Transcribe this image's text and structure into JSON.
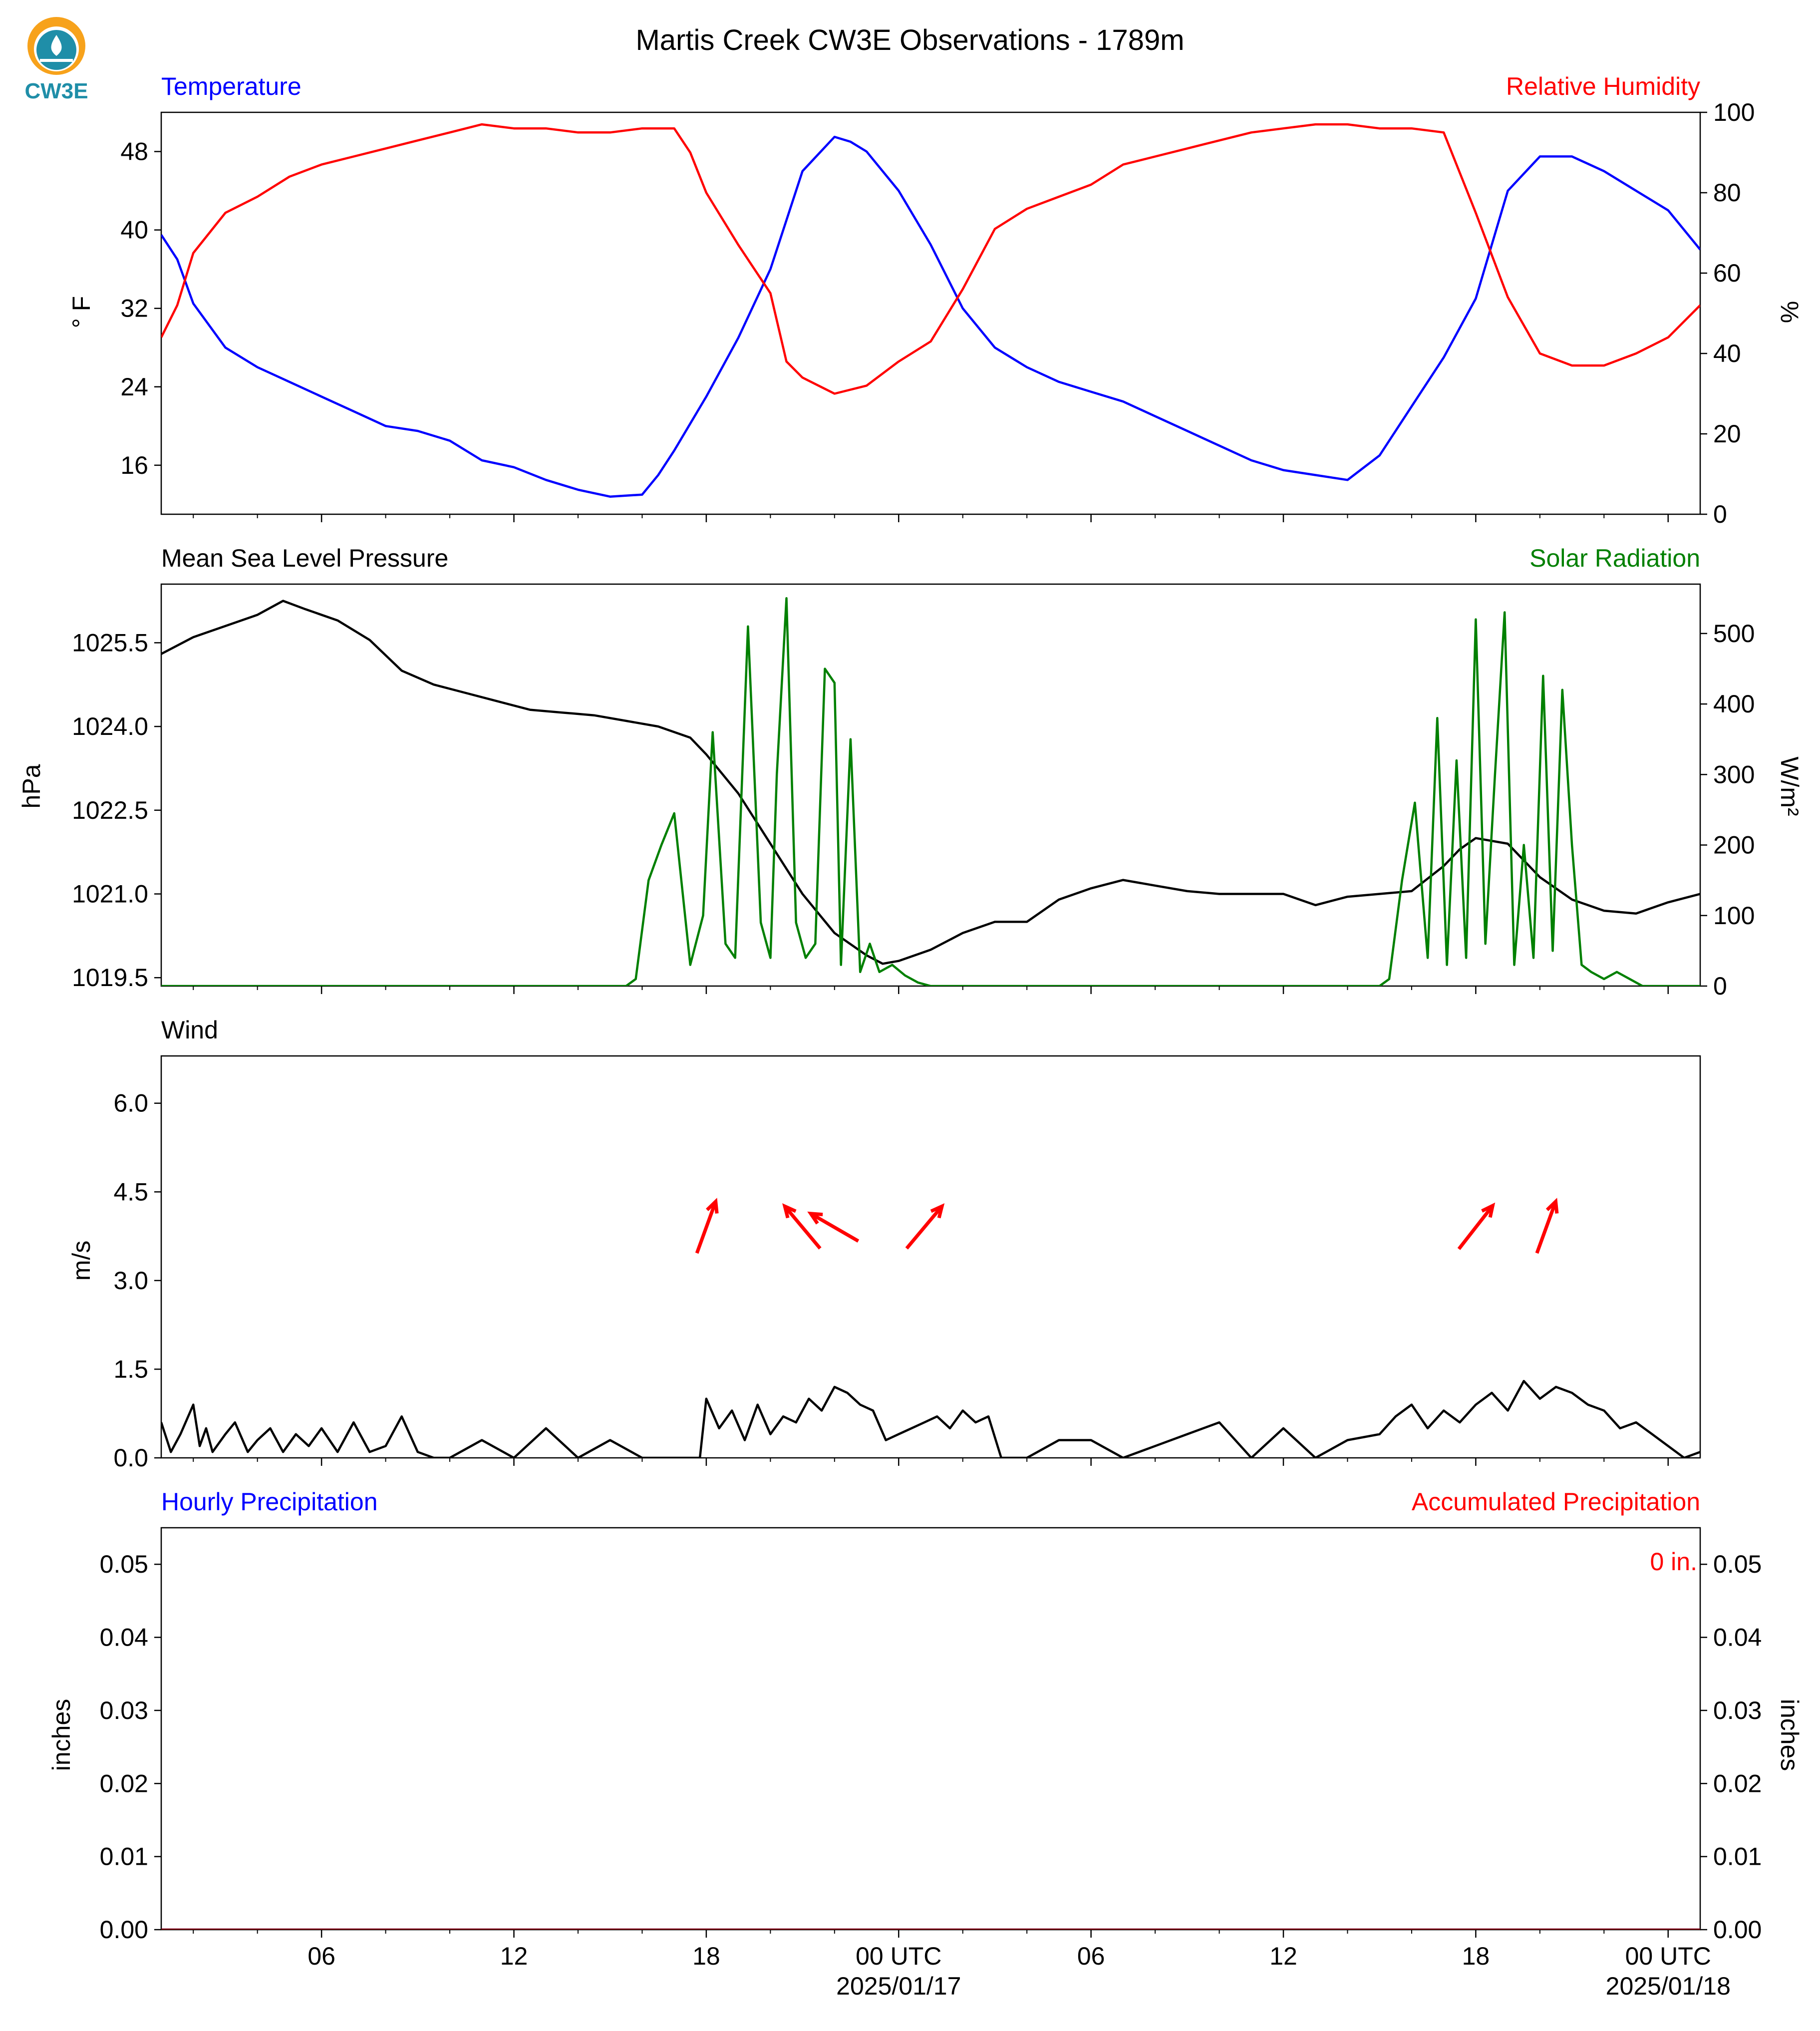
{
  "logo": {
    "text": "CW3E"
  },
  "title": "Martis Creek CW3E Observations - 1789m",
  "xaxis": {
    "tick_labels": [
      "06",
      "12",
      "18",
      "00 UTC",
      "06",
      "12",
      "18",
      "00 UTC"
    ],
    "tick_hours": [
      6,
      12,
      18,
      24,
      30,
      36,
      42,
      48
    ],
    "date_labels": [
      "2025/01/17",
      "2025/01/18"
    ],
    "date_hours": [
      24,
      48
    ],
    "range_hours": [
      1,
      49
    ]
  },
  "colors": {
    "temperature": "#0000ff",
    "humidity": "#ff0000",
    "pressure": "#000000",
    "solar": "#008000",
    "wind": "#000000",
    "arrows": "#ff0000",
    "accum": "#ff0000"
  },
  "panels": {
    "temp_rh": {
      "left_title": "Temperature",
      "right_title": "Relative Humidity",
      "left_unit": "° F",
      "right_unit": "%"
    },
    "pressure_solar": {
      "left_title": "Mean Sea Level Pressure",
      "right_title": "Solar Radiation",
      "left_unit": "hPa",
      "right_unit": "W/m²"
    },
    "wind": {
      "left_title": "Wind",
      "left_unit": "m/s"
    },
    "precip": {
      "left_title": "Hourly Precipitation",
      "right_title": "Accumulated Precipitation",
      "left_unit": "inches",
      "right_unit": "inches",
      "total_label": "0 in."
    }
  },
  "chart_data": [
    {
      "type": "line",
      "title": "Temperature / Relative Humidity",
      "x_unit": "hours from 2025/01/16 00 UTC",
      "y_left": {
        "label": "° F",
        "ylim": [
          11,
          52
        ],
        "ticks": [
          16,
          24,
          32,
          40,
          48
        ],
        "tick_labels": [
          "16",
          "24",
          "32",
          "40",
          "48"
        ]
      },
      "y_right": {
        "label": "%",
        "ylim": [
          0,
          100
        ],
        "ticks": [
          0,
          20,
          40,
          60,
          80,
          100
        ],
        "tick_labels": [
          "0",
          "20",
          "40",
          "60",
          "80",
          "100"
        ]
      },
      "series": [
        {
          "name": "Temperature",
          "axis": "left",
          "color": "#0000ff",
          "x": [
            1,
            1.5,
            2,
            3,
            4,
            5,
            6,
            7,
            8,
            9,
            10,
            11,
            12,
            13,
            14,
            15,
            16,
            16.5,
            17,
            18,
            19,
            20,
            21,
            22,
            22.5,
            23,
            24,
            25,
            26,
            27,
            28,
            29,
            30,
            31,
            32,
            33,
            34,
            35,
            36,
            37,
            38,
            39,
            40,
            40.5,
            41,
            42,
            43,
            44,
            45,
            46,
            47,
            48,
            49
          ],
          "y": [
            39.5,
            37,
            32.5,
            28,
            26,
            24.5,
            23,
            21.5,
            20,
            19.5,
            18.5,
            16.5,
            15.8,
            14.5,
            13.5,
            12.8,
            13,
            15,
            17.5,
            23,
            29,
            36,
            46,
            49.5,
            49,
            48,
            44,
            38.5,
            32,
            28,
            26,
            24.5,
            23.5,
            22.5,
            21,
            19.5,
            18,
            16.5,
            15.5,
            15,
            14.5,
            17,
            22,
            24.5,
            27,
            33,
            44,
            47.5,
            47.5,
            46,
            44,
            42,
            38
          ]
        },
        {
          "name": "Relative Humidity",
          "axis": "right",
          "color": "#ff0000",
          "x": [
            1,
            1.5,
            2,
            3,
            4,
            5,
            6,
            7,
            8,
            9,
            10,
            11,
            12,
            13,
            14,
            15,
            16,
            17,
            17.5,
            18,
            19,
            20,
            20.5,
            21,
            22,
            23,
            24,
            25,
            26,
            27,
            28,
            29,
            30,
            31,
            32,
            33,
            34,
            35,
            36,
            37,
            38,
            39,
            40,
            41,
            41.5,
            42,
            43,
            44,
            45,
            46,
            47,
            48,
            49
          ],
          "y": [
            44,
            52,
            65,
            75,
            79,
            84,
            87,
            89,
            91,
            93,
            95,
            97,
            96,
            96,
            95,
            95,
            96,
            96,
            90,
            80,
            67,
            55,
            38,
            34,
            30,
            32,
            38,
            43,
            56,
            71,
            76,
            79,
            82,
            87,
            89,
            91,
            93,
            95,
            96,
            97,
            97,
            96,
            96,
            95,
            85,
            75,
            54,
            40,
            37,
            37,
            40,
            44,
            52
          ]
        }
      ]
    },
    {
      "type": "line",
      "title": "Mean Sea Level Pressure / Solar Radiation",
      "x_unit": "hours from 2025/01/16 00 UTC",
      "y_left": {
        "label": "hPa",
        "ylim": [
          1019.35,
          1026.55
        ],
        "ticks": [
          1019.5,
          1021.0,
          1022.5,
          1024.0,
          1025.5
        ],
        "tick_labels": [
          "1019.5",
          "1021.0",
          "1022.5",
          "1024.0",
          "1025.5"
        ]
      },
      "y_right": {
        "label": "W/m²",
        "ylim": [
          0,
          570
        ],
        "ticks": [
          0,
          100,
          200,
          300,
          400,
          500
        ],
        "tick_labels": [
          "0",
          "100",
          "200",
          "300",
          "400",
          "500"
        ]
      },
      "series": [
        {
          "name": "Mean Sea Level Pressure",
          "axis": "left",
          "color": "#000000",
          "x": [
            1,
            2,
            3,
            4,
            4.8,
            5.5,
            6.5,
            7.5,
            8.5,
            9.5,
            10.5,
            11.5,
            12.5,
            13.5,
            14.5,
            15.5,
            16.5,
            17.5,
            18,
            19,
            20,
            21,
            22,
            23,
            23.5,
            24,
            25,
            26,
            27,
            28,
            29,
            30,
            31,
            32,
            33,
            34,
            35,
            36,
            37,
            38,
            39,
            40,
            41,
            41.5,
            42,
            43,
            44,
            45,
            46,
            47,
            48,
            49
          ],
          "y": [
            1025.3,
            1025.6,
            1025.8,
            1026.0,
            1026.25,
            1026.1,
            1025.9,
            1025.55,
            1025.0,
            1024.75,
            1024.6,
            1024.45,
            1024.3,
            1024.25,
            1024.2,
            1024.1,
            1024.0,
            1023.8,
            1023.5,
            1022.8,
            1021.9,
            1021.0,
            1020.3,
            1019.9,
            1019.75,
            1019.8,
            1020.0,
            1020.3,
            1020.5,
            1020.5,
            1020.9,
            1021.1,
            1021.25,
            1021.15,
            1021.05,
            1021.0,
            1021.0,
            1021.0,
            1020.8,
            1020.95,
            1021.0,
            1021.05,
            1021.5,
            1021.8,
            1022.0,
            1021.9,
            1021.3,
            1020.9,
            1020.7,
            1020.65,
            1020.85,
            1021.0
          ]
        },
        {
          "name": "Solar Radiation",
          "axis": "right",
          "color": "#008000",
          "x": [
            1,
            15.5,
            15.8,
            16.2,
            16.6,
            17.0,
            17.5,
            17.9,
            18.2,
            18.6,
            18.9,
            19.3,
            19.7,
            20.0,
            20.2,
            20.5,
            20.8,
            21.1,
            21.4,
            21.7,
            22.0,
            22.2,
            22.5,
            22.8,
            23.1,
            23.4,
            23.8,
            24.2,
            24.6,
            25.0,
            25.4,
            25.8,
            39.0,
            39.3,
            39.7,
            40.1,
            40.5,
            40.8,
            41.1,
            41.4,
            41.7,
            42.0,
            42.3,
            42.6,
            42.9,
            43.2,
            43.5,
            43.8,
            44.1,
            44.4,
            44.7,
            45.0,
            45.3,
            45.6,
            46.0,
            46.4,
            46.8,
            47.2,
            47.6,
            48.0,
            48.4,
            48.8,
            49
          ],
          "y": [
            0,
            0,
            10,
            150,
            200,
            245,
            30,
            100,
            360,
            60,
            40,
            510,
            90,
            40,
            300,
            550,
            90,
            40,
            60,
            450,
            430,
            30,
            350,
            20,
            60,
            20,
            30,
            15,
            5,
            0,
            0,
            0,
            0,
            10,
            150,
            260,
            40,
            380,
            30,
            320,
            40,
            520,
            60,
            300,
            530,
            30,
            200,
            40,
            440,
            50,
            420,
            200,
            30,
            20,
            10,
            20,
            10,
            0,
            0,
            0,
            0,
            0,
            0
          ]
        }
      ]
    },
    {
      "type": "line",
      "title": "Wind",
      "x_unit": "hours from 2025/01/16 00 UTC",
      "y_left": {
        "label": "m/s",
        "ylim": [
          0,
          6.8
        ],
        "ticks": [
          0.0,
          1.5,
          3.0,
          4.5,
          6.0
        ],
        "tick_labels": [
          "0.0",
          "1.5",
          "3.0",
          "4.5",
          "6.0"
        ]
      },
      "series": [
        {
          "name": "Wind Speed",
          "axis": "left",
          "color": "#000000",
          "x": [
            1,
            1.3,
            1.6,
            2.0,
            2.2,
            2.4,
            2.6,
            3.0,
            3.3,
            3.7,
            4.0,
            4.4,
            4.8,
            5.2,
            5.6,
            6.0,
            6.5,
            7.0,
            7.5,
            8.0,
            8.5,
            9.0,
            9.5,
            10,
            11,
            12,
            13,
            14,
            15,
            16,
            17,
            17.5,
            17.8,
            18.0,
            18.4,
            18.8,
            19.2,
            19.6,
            20.0,
            20.4,
            20.8,
            21.2,
            21.6,
            22.0,
            22.4,
            22.8,
            23.2,
            23.6,
            24.0,
            24.4,
            24.8,
            25.2,
            25.6,
            26.0,
            26.4,
            26.8,
            27.2,
            28,
            29,
            30,
            31,
            32,
            33,
            34,
            35,
            36,
            37,
            38,
            39,
            39.5,
            40,
            40.5,
            41,
            41.5,
            42,
            42.5,
            43,
            43.5,
            44,
            44.5,
            45,
            45.5,
            46,
            46.5,
            47,
            47.5,
            48,
            48.5,
            49
          ],
          "y": [
            0.6,
            0.1,
            0.4,
            0.9,
            0.2,
            0.5,
            0.1,
            0.4,
            0.6,
            0.1,
            0.3,
            0.5,
            0.1,
            0.4,
            0.2,
            0.5,
            0.1,
            0.6,
            0.1,
            0.2,
            0.7,
            0.1,
            0.0,
            0.0,
            0.3,
            0.0,
            0.5,
            0.0,
            0.3,
            0.0,
            0.0,
            0.0,
            0.0,
            1.0,
            0.5,
            0.8,
            0.3,
            0.9,
            0.4,
            0.7,
            0.6,
            1.0,
            0.8,
            1.2,
            1.1,
            0.9,
            0.8,
            0.3,
            0.4,
            0.5,
            0.6,
            0.7,
            0.5,
            0.8,
            0.6,
            0.7,
            0.0,
            0.0,
            0.3,
            0.3,
            0.0,
            0.2,
            0.4,
            0.6,
            0.0,
            0.5,
            0.0,
            0.3,
            0.4,
            0.7,
            0.9,
            0.5,
            0.8,
            0.6,
            0.9,
            1.1,
            0.8,
            1.3,
            1.0,
            1.2,
            1.1,
            0.9,
            0.8,
            0.5,
            0.6,
            0.4,
            0.2,
            0.0,
            0.1
          ]
        }
      ],
      "direction_arrows": [
        {
          "x": 18.0,
          "direction_deg": 20
        },
        {
          "x": 21.0,
          "direction_deg": 320
        },
        {
          "x": 22.0,
          "direction_deg": 300
        },
        {
          "x": 24.8,
          "direction_deg": 40
        },
        {
          "x": 42.0,
          "direction_deg": 38
        },
        {
          "x": 44.2,
          "direction_deg": 20
        }
      ]
    },
    {
      "type": "line",
      "title": "Hourly Precipitation / Accumulated Precipitation",
      "x_unit": "hours from 2025/01/16 00 UTC",
      "y_left": {
        "label": "inches",
        "ylim": [
          0,
          0.055
        ],
        "ticks": [
          0.0,
          0.01,
          0.02,
          0.03,
          0.04,
          0.05
        ],
        "tick_labels": [
          "0.00",
          "0.01",
          "0.02",
          "0.03",
          "0.04",
          "0.05"
        ]
      },
      "y_right": {
        "label": "inches",
        "ylim": [
          0,
          0.055
        ],
        "ticks": [
          0.0,
          0.01,
          0.02,
          0.03,
          0.04,
          0.05
        ],
        "tick_labels": [
          "0.00",
          "0.01",
          "0.02",
          "0.03",
          "0.04",
          "0.05"
        ]
      },
      "series": [
        {
          "name": "Hourly Precipitation",
          "axis": "left",
          "color": "#0000ff",
          "x": [
            1,
            49
          ],
          "y": [
            0,
            0
          ]
        },
        {
          "name": "Accumulated Precipitation",
          "axis": "right",
          "color": "#8b0000",
          "x": [
            1,
            49
          ],
          "y": [
            0,
            0
          ]
        }
      ]
    }
  ]
}
